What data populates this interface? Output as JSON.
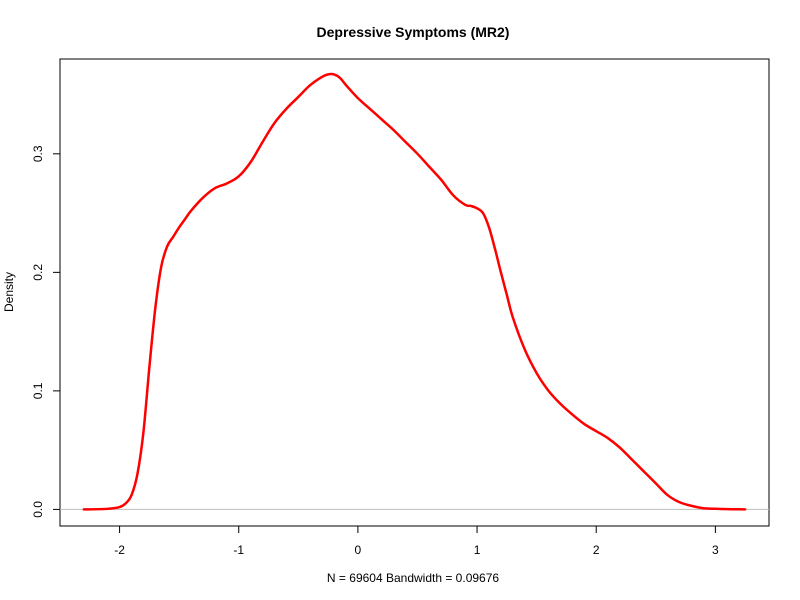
{
  "chart_data": {
    "type": "line",
    "title": "Depressive Symptoms (MR2)",
    "xlabel": "N = 69604   Bandwidth = 0.09676",
    "ylabel": "Density",
    "xlim": [
      -2.5,
      3.45
    ],
    "ylim": [
      -0.014,
      0.38
    ],
    "x_ticks": [
      -2,
      -1,
      0,
      1,
      2,
      3
    ],
    "x_tick_labels": [
      "-2",
      "-1",
      "0",
      "1",
      "2",
      "3"
    ],
    "y_ticks": [
      0.0,
      0.1,
      0.2,
      0.3
    ],
    "y_tick_labels": [
      "0.0",
      "0.1",
      "0.2",
      "0.3"
    ],
    "grid": false,
    "legend": "none",
    "baseline": {
      "y": 0,
      "color": "#bebebe"
    },
    "colors": {
      "line": "#ff0000",
      "axes": "#000000"
    },
    "series": [
      {
        "x": [
          -2.3,
          -2.1,
          -2.0,
          -1.95,
          -1.9,
          -1.85,
          -1.8,
          -1.75,
          -1.7,
          -1.65,
          -1.6,
          -1.55,
          -1.5,
          -1.45,
          -1.4,
          -1.3,
          -1.2,
          -1.1,
          -1.0,
          -0.9,
          -0.8,
          -0.7,
          -0.6,
          -0.5,
          -0.4,
          -0.3,
          -0.25,
          -0.2,
          -0.15,
          -0.1,
          0.0,
          0.1,
          0.2,
          0.3,
          0.4,
          0.5,
          0.6,
          0.7,
          0.8,
          0.9,
          0.95,
          1.0,
          1.05,
          1.1,
          1.15,
          1.2,
          1.25,
          1.3,
          1.4,
          1.5,
          1.6,
          1.7,
          1.8,
          1.9,
          2.0,
          2.1,
          2.2,
          2.3,
          2.4,
          2.5,
          2.6,
          2.7,
          2.8,
          2.9,
          3.0,
          3.1,
          3.2,
          3.25
        ],
        "y": [
          0.0,
          0.0005,
          0.002,
          0.005,
          0.012,
          0.03,
          0.065,
          0.12,
          0.17,
          0.205,
          0.222,
          0.23,
          0.238,
          0.245,
          0.252,
          0.263,
          0.271,
          0.275,
          0.281,
          0.293,
          0.31,
          0.326,
          0.338,
          0.348,
          0.358,
          0.365,
          0.367,
          0.367,
          0.364,
          0.358,
          0.347,
          0.338,
          0.329,
          0.32,
          0.31,
          0.3,
          0.289,
          0.278,
          0.265,
          0.257,
          0.256,
          0.254,
          0.25,
          0.238,
          0.22,
          0.2,
          0.181,
          0.162,
          0.135,
          0.115,
          0.1,
          0.089,
          0.08,
          0.072,
          0.066,
          0.06,
          0.052,
          0.042,
          0.032,
          0.022,
          0.012,
          0.006,
          0.003,
          0.001,
          0.0005,
          0.0002,
          0.0001,
          0.0
        ]
      }
    ]
  }
}
